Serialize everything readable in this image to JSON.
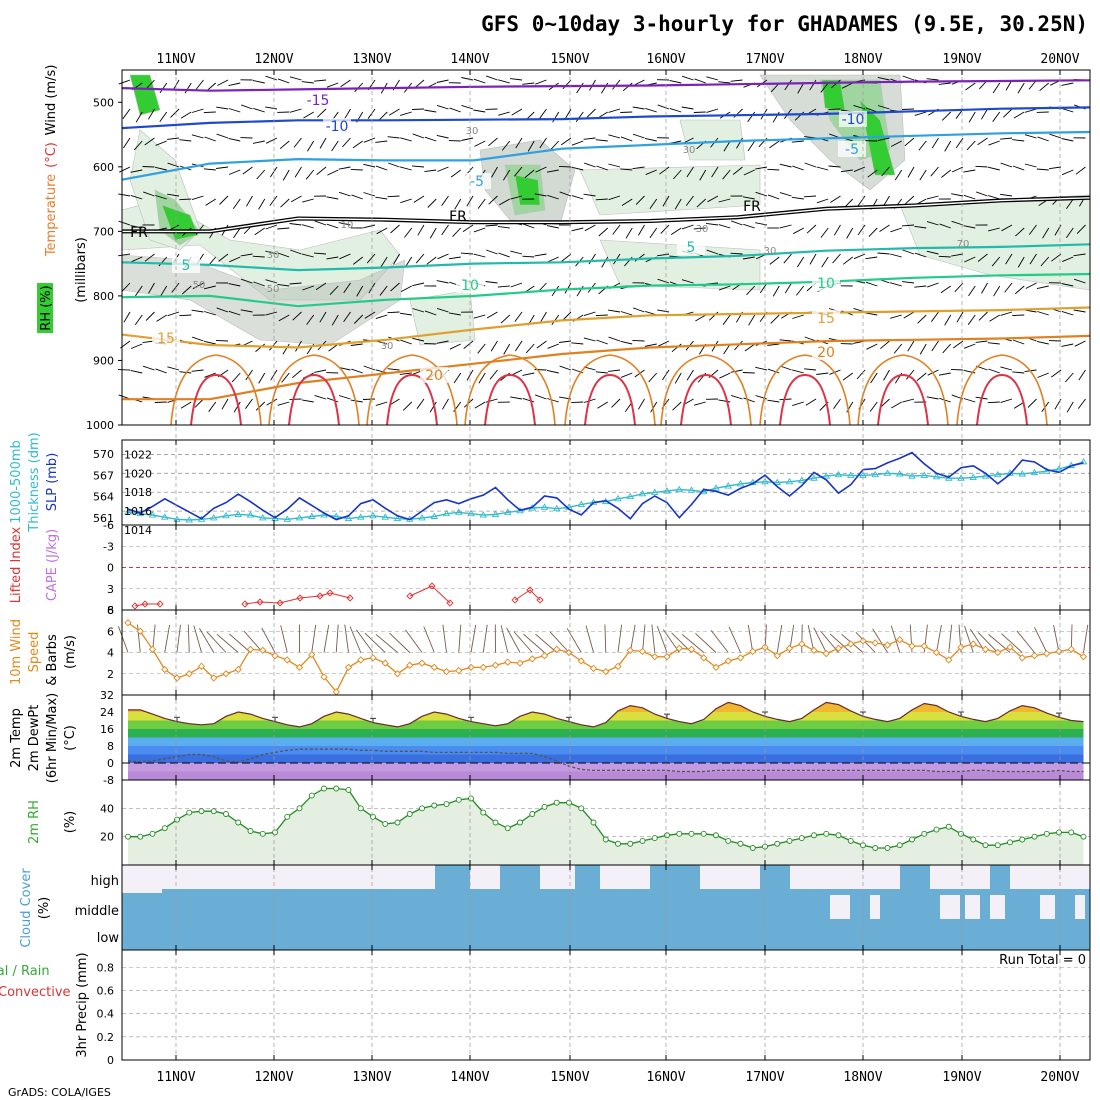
{
  "title": "GFS 0~10day 3-hourly for GHADAMES (9.5E, 30.25N)",
  "credit": "GrADS: COLA/IGES",
  "dates": [
    "11NOV",
    "12NOV",
    "13NOV",
    "14NOV",
    "15NOV",
    "16NOV",
    "17NOV",
    "18NOV",
    "19NOV",
    "20NOV"
  ],
  "colors": {
    "grid": "#999999",
    "green_dark": "#33cc33",
    "green_mid": "#9fd59f",
    "green_light": "#e2f0e2",
    "gray_shade": "#aeb9ae",
    "cloud_blue": "#6aaed6",
    "cloud_empty": "#f4f0f8",
    "slp": "#1533c8",
    "thick": "#33bbcc",
    "lifted": "#dd3333",
    "wind": "#e08a1e",
    "rh2m": "#228b22"
  },
  "chart_data": [
    {
      "id": "upper_air",
      "type": "contour",
      "ylabel_parts": [
        "RH (%)",
        "Temperature",
        "(°C)",
        "Wind (m/s)",
        "(millibars)"
      ],
      "yticks": [
        "500",
        "600",
        "700",
        "800",
        "900",
        "1000"
      ],
      "ylim": [
        450,
        1000
      ],
      "temperature_labels": [
        "-15",
        "-10",
        "-10",
        "-5",
        "-5",
        "5",
        "5",
        "10",
        "10",
        "15",
        "15",
        "20",
        "20"
      ],
      "rh_labels": [
        "30",
        "30",
        "30",
        "10",
        "30",
        "30",
        "50",
        "50",
        "30",
        "70"
      ],
      "freezing_level_labels": [
        "FR",
        "FR",
        "FR"
      ],
      "temperature_isotherms": [
        {
          "label": "-15",
          "color": "#7b22b8",
          "p": [
            478,
            482,
            480,
            478,
            476,
            475,
            474,
            472,
            470,
            468,
            467,
            466
          ]
        },
        {
          "label": "-10",
          "color": "#1f48d0",
          "p": [
            540,
            532,
            528,
            528,
            527,
            526,
            522,
            520,
            518,
            514,
            510,
            508
          ]
        },
        {
          "label": "-5",
          "color": "#2fa0e0",
          "p": [
            620,
            595,
            588,
            590,
            590,
            572,
            566,
            560,
            556,
            552,
            548,
            546
          ]
        },
        {
          "label": "FR",
          "color": "#000000",
          "p": [
            700,
            700,
            680,
            682,
            686,
            686,
            684,
            678,
            665,
            660,
            652,
            648
          ]
        },
        {
          "label": "5",
          "color": "#22bbaa",
          "p": [
            748,
            752,
            760,
            756,
            750,
            748,
            742,
            738,
            730,
            726,
            724,
            720
          ]
        },
        {
          "label": "10",
          "color": "#22cc88",
          "p": [
            802,
            800,
            816,
            806,
            800,
            790,
            784,
            782,
            778,
            772,
            768,
            766
          ]
        },
        {
          "label": "15",
          "color": "#e0a030",
          "p": [
            860,
            876,
            880,
            868,
            852,
            838,
            830,
            828,
            826,
            824,
            822,
            818
          ]
        },
        {
          "label": "20",
          "color": "#e08020",
          "p": [
            960,
            960,
            935,
            920,
            905,
            890,
            880,
            875,
            870,
            868,
            866,
            862
          ]
        }
      ]
    },
    {
      "id": "slp_thickness",
      "type": "line",
      "ylabel_parts": [
        "1000-500mb",
        "Thickness (dm)",
        "SLP (mb)"
      ],
      "left_ticks": [
        "570",
        "567",
        "564",
        "561"
      ],
      "right_ticks": [
        "1022",
        "1020",
        "1018",
        "1016",
        "1014"
      ],
      "slp_ylim": [
        1014,
        1023
      ],
      "thickness_ylim": [
        560,
        572
      ],
      "series": [
        {
          "name": "SLP",
          "values": [
            1016.2,
            1015.8,
            1016.5,
            1017.3,
            1016.6,
            1015.9,
            1015.2,
            1016.3,
            1016.9,
            1017.8,
            1017.0,
            1016.1,
            1015.3,
            1016.2,
            1017.4,
            1016.6,
            1015.8,
            1015.1,
            1015.5,
            1016.8,
            1017.2,
            1016.3,
            1015.5,
            1015.1,
            1016.0,
            1016.9,
            1017.2,
            1016.8,
            1017.3,
            1017.7,
            1018.5,
            1017.2,
            1016.1,
            1016.4,
            1017.6,
            1017.4,
            1016.2,
            1015.6,
            1016.9,
            1017.1,
            1016.3,
            1015.2,
            1016.8,
            1017.6,
            1016.9,
            1015.3,
            1016.7,
            1018.3,
            1018.1,
            1017.7,
            1018.4,
            1018.9,
            1019.8,
            1018.6,
            1017.6,
            1018.7,
            1020.1,
            1019.3,
            1017.9,
            1018.8,
            1020.4,
            1020.5,
            1021.1,
            1021.6,
            1022.2,
            1021.0,
            1020.0,
            1019.6,
            1020.6,
            1020.8,
            1020.0,
            1018.9,
            1019.9,
            1021.4,
            1021.2,
            1020.4,
            1020.1,
            1020.8,
            1021.1,
            1022.0,
            1020.6,
            1019.3,
            1019.5,
            1020.4,
            1021.0,
            1020.0,
            1018.7,
            1017.3,
            1017.6,
            1018.5,
            1017.2,
            1015.8,
            1016.5,
            1017.0,
            1017.1,
            1016.0,
            1014.9,
            1016.2,
            1016.4,
            1015.7,
            1015.5,
            1015.5,
            1015.9
          ]
        },
        {
          "name": "Thickness",
          "values": [
            561.8,
            561.6,
            561.4,
            561.1,
            560.8,
            560.7,
            560.8,
            561.0,
            561.3,
            561.5,
            561.4,
            561.0,
            560.9,
            560.8,
            561.0,
            561.2,
            561.4,
            561.2,
            560.9,
            561.1,
            561.3,
            561.1,
            560.9,
            560.8,
            561.0,
            561.2,
            561.6,
            561.8,
            561.6,
            561.4,
            561.5,
            561.8,
            562.0,
            562.4,
            562.5,
            562.3,
            562.5,
            562.9,
            563.2,
            563.3,
            563.7,
            564.0,
            564.4,
            564.6,
            564.8,
            565.0,
            564.9,
            564.7,
            565.2,
            565.5,
            565.8,
            566.0,
            566.1,
            566.0,
            566.1,
            566.3,
            566.6,
            566.9,
            567.1,
            567.0,
            567.0,
            567.1,
            567.3,
            567.2,
            566.9,
            567.0,
            566.8,
            566.6,
            566.6,
            566.7,
            566.9,
            567.1,
            567.3,
            567.2,
            567.4,
            567.6,
            567.9,
            568.4,
            568.9,
            569.4,
            569.9,
            570.1,
            570.1,
            569.7,
            569.4,
            569.1,
            568.9,
            569.4,
            570.1,
            570.7,
            571.1,
            571.0,
            570.8,
            570.8,
            570.7,
            570.4,
            570.1,
            569.8,
            569.5
          ]
        }
      ]
    },
    {
      "id": "stability",
      "type": "line",
      "ylabel_parts": [
        "Lifted Index",
        "CAPE (J/kg)"
      ],
      "yticks": [
        "-6",
        "-3",
        "0",
        "3",
        "6"
      ],
      "ylim": [
        -6,
        6
      ],
      "series": [
        {
          "name": "Lifted Index",
          "segments": [
            [
              4,
              5.6
            ],
            [
              5,
              5.4
            ],
            [
              6,
              5.5
            ],
            [
              7,
              5.8
            ]
          ],
          "comment": "values plotted near +6"
        }
      ]
    },
    {
      "id": "wind_10m",
      "type": "line",
      "ylabel_parts": [
        "10m Wind",
        "Speed",
        "& Barbs",
        "(m/s)"
      ],
      "yticks": [
        "2",
        "4",
        "6",
        "8"
      ],
      "ylim": [
        0,
        8
      ],
      "series": [
        {
          "name": "Wind Speed",
          "values": [
            6.8,
            6.0,
            4.3,
            2.4,
            1.6,
            2.0,
            2.7,
            1.6,
            2.0,
            2.4,
            4.3,
            4.2,
            3.7,
            3.3,
            2.6,
            3.8,
            1.7,
            0.3,
            2.6,
            3.3,
            3.5,
            3.0,
            2.0,
            2.8,
            3.0,
            2.6,
            2.2,
            2.3,
            2.6,
            2.6,
            2.8,
            3.1,
            3.0,
            3.4,
            3.7,
            4.3,
            4.0,
            3.2,
            2.5,
            2.2,
            2.7,
            4.2,
            4.1,
            3.6,
            3.6,
            4.4,
            4.3,
            3.5,
            2.6,
            3.2,
            3.5,
            4.1,
            4.5,
            3.7,
            4.4,
            4.8,
            4.2,
            3.9,
            4.4,
            4.8,
            5.1,
            4.9,
            4.7,
            5.2,
            4.6,
            4.6,
            4.0,
            3.3,
            4.5,
            4.8,
            4.3,
            4.0,
            4.5,
            3.5,
            3.7,
            3.9,
            4.1,
            4.3,
            3.6,
            4.2,
            3.6,
            2.9,
            3.5,
            3.8,
            4.0,
            4.4,
            3.6,
            3.6,
            3.3,
            4.0,
            4.6,
            5.2,
            5.9,
            7.4,
            6.9,
            6.1,
            4.6,
            4.0,
            4.2,
            4.3,
            4.6,
            3.7,
            2.5,
            2.9,
            2.8
          ]
        }
      ]
    },
    {
      "id": "temp_2m",
      "type": "area",
      "ylabel_parts": [
        "2m Temp",
        "2m DewPt",
        "(6hr Min/Max)",
        "(°C)"
      ],
      "yticks": [
        "32",
        "24",
        "16",
        "8",
        "0",
        "-8"
      ],
      "ylim": [
        -8,
        32
      ],
      "series": [
        {
          "name": "2m Temp",
          "values": [
            25,
            25,
            23,
            21,
            19.5,
            18.5,
            18,
            18.5,
            22,
            24,
            23,
            21,
            19.5,
            18,
            17,
            18.5,
            22,
            24,
            23,
            21,
            19,
            18,
            17,
            18.5,
            22,
            24,
            23,
            21,
            19.5,
            18.5,
            17.5,
            18.5,
            22,
            24,
            23,
            21,
            19.5,
            18,
            17,
            19,
            24.5,
            27,
            26,
            23,
            21,
            19.5,
            18.5,
            20.5,
            25.5,
            28.5,
            27,
            24,
            22,
            20.5,
            19.5,
            21,
            25,
            28.5,
            27.5,
            24.5,
            22,
            20.5,
            19.5,
            21,
            25,
            28,
            27,
            24,
            22,
            20.5,
            19.5,
            21,
            24.5,
            27,
            26,
            23.5,
            21.5,
            20,
            19.5,
            21,
            25,
            27.5,
            26,
            23.5,
            21.5,
            20,
            19.5,
            21,
            24.5,
            27.5,
            26.5,
            23.5,
            21.5,
            20,
            19,
            18
          ]
        },
        {
          "name": "2m DewPt",
          "values": [
            1,
            0.5,
            1,
            2,
            3,
            4,
            4,
            3,
            1,
            0.5,
            2,
            4,
            5,
            6,
            6.5,
            6.5,
            6.5,
            6.5,
            6.5,
            6,
            6,
            5.5,
            5.5,
            5.5,
            5.5,
            5,
            5,
            5,
            5,
            5,
            5,
            4.5,
            4.5,
            4.5,
            3,
            1,
            -1.5,
            -3,
            -3.5,
            -3.5,
            -3.5,
            -3.5,
            -3.5,
            -3.5,
            -3.5,
            -4,
            -4,
            -4,
            -3.5,
            -3.5,
            -3.5,
            -3.5,
            -3.5,
            -3.5,
            -3.5,
            -3.5,
            -3.5,
            -3.5,
            -3.5,
            -3.5,
            -3.5,
            -3.5,
            -3.5,
            -3.5,
            -3.5,
            -3.5,
            -4,
            -4,
            -4,
            -3.5,
            -3.5,
            -4,
            -4,
            -4,
            -4,
            -4,
            -3.5,
            -4,
            -4,
            -3.5,
            -3.5,
            -3.5,
            -3.5,
            -4,
            -4,
            -3.5,
            -3.5,
            -4,
            -4,
            -4,
            -5,
            -5,
            -4.5,
            -4,
            -3.5
          ]
        }
      ]
    },
    {
      "id": "rh_2m",
      "type": "area",
      "ylabel_parts": [
        "2m RH",
        "(%)"
      ],
      "yticks": [
        "20",
        "40"
      ],
      "ylim": [
        0,
        60
      ],
      "series": [
        {
          "name": "2m RH",
          "values": [
            20,
            20,
            22,
            26,
            32,
            37,
            38,
            38,
            36,
            30,
            24,
            22,
            23,
            34,
            40,
            49,
            54,
            54,
            53,
            40,
            34,
            29,
            30,
            36,
            40,
            42,
            43,
            46,
            47,
            37,
            30,
            26,
            30,
            36,
            41,
            44,
            44,
            40,
            30,
            18,
            15,
            15,
            17,
            19,
            21,
            22,
            22,
            22,
            21,
            17,
            15,
            12,
            13,
            15,
            17,
            19,
            21,
            22,
            21,
            17,
            14,
            12,
            12,
            14,
            18,
            22,
            25,
            27,
            22,
            18,
            14,
            14,
            16,
            18,
            20,
            22,
            23,
            23,
            20,
            16,
            14,
            14,
            16,
            18,
            20,
            21,
            21,
            17,
            11,
            9,
            10,
            11,
            13,
            15,
            17,
            19,
            21,
            23
          ]
        }
      ]
    },
    {
      "id": "cloud_cover",
      "type": "heatmap",
      "ylabel_parts": [
        "Cloud Cover",
        "(%)"
      ],
      "row_labels": [
        "high",
        "middle",
        "low"
      ],
      "comment": "mostly full cover in all layers with gaps in high layer"
    },
    {
      "id": "precip",
      "type": "bar",
      "ylabel_parts": [
        "Total / Rain",
        "Convective",
        "3hr Precip (mm)"
      ],
      "yticks": [
        "0",
        "0.2",
        "0.4",
        "0.6",
        "0.8"
      ],
      "ylim": [
        0,
        0.95
      ],
      "run_total_label": "Run Total = 0",
      "values": []
    }
  ]
}
